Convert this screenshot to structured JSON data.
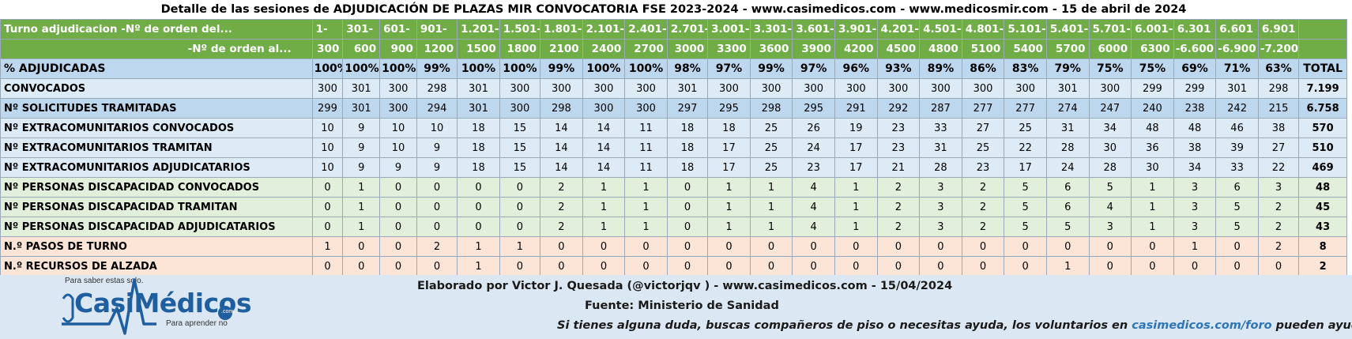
{
  "title": "Detalle de las sesiones de ADJUDICACIÓN DE PLAZAS MIR CONVOCATORIA FSE 2023-2024  - www.casimedicos.com - www.medicosmir.com - 15 de abril de 2024",
  "header": {
    "from_label": "Turno adjudicacion -Nº de orden del...",
    "to_label": "-Nº de orden al...",
    "total_label": "TOTAL",
    "from": [
      "1-",
      "301-",
      "601-",
      "901-",
      "1.201-",
      "1.501-",
      "1.801-",
      "2.101-",
      "2.401-",
      "2.701-",
      "3.001-",
      "3.301-",
      "3.601-",
      "3.901-",
      "4.201-",
      "4.501-",
      "4.801-",
      "5.101-",
      "5.401-",
      "5.701-",
      "6.001-",
      "6.301",
      "6.601",
      "6.901"
    ],
    "to": [
      "300",
      "600",
      "900",
      "1200",
      "1500",
      "1800",
      "2100",
      "2400",
      "2700",
      "3000",
      "3300",
      "3600",
      "3900",
      "4200",
      "4500",
      "4800",
      "5100",
      "5400",
      "5700",
      "6000",
      "6300",
      "-6.600",
      "-6.900",
      "-7.200"
    ]
  },
  "rows": [
    {
      "label": "% ADJUDICADAS",
      "style": "pct",
      "values": [
        "100%",
        "100%",
        "100%",
        "99%",
        "100%",
        "100%",
        "99%",
        "100%",
        "100%",
        "98%",
        "97%",
        "99%",
        "97%",
        "96%",
        "93%",
        "89%",
        "86%",
        "83%",
        "79%",
        "75%",
        "75%",
        "69%",
        "71%",
        "63%"
      ],
      "total": "TOTAL"
    },
    {
      "label": "CONVOCADOS",
      "style": "blue",
      "values": [
        "300",
        "301",
        "300",
        "298",
        "301",
        "300",
        "300",
        "300",
        "300",
        "301",
        "300",
        "300",
        "300",
        "300",
        "300",
        "300",
        "300",
        "300",
        "301",
        "300",
        "299",
        "299",
        "301",
        "298"
      ],
      "total": "7.199"
    },
    {
      "label": "Nº SOLICITUDES TRAMITADAS",
      "style": "blueb",
      "values": [
        "299",
        "301",
        "300",
        "294",
        "301",
        "300",
        "298",
        "300",
        "300",
        "297",
        "295",
        "298",
        "295",
        "291",
        "292",
        "287",
        "277",
        "277",
        "274",
        "247",
        "240",
        "238",
        "242",
        "215"
      ],
      "total": "6.758"
    },
    {
      "label": "Nº EXTRACOMUNITARIOS CONVOCADOS",
      "style": "blue",
      "values": [
        "10",
        "9",
        "10",
        "10",
        "18",
        "15",
        "14",
        "14",
        "11",
        "18",
        "18",
        "25",
        "26",
        "19",
        "23",
        "33",
        "27",
        "25",
        "31",
        "34",
        "48",
        "48",
        "46",
        "38"
      ],
      "total": "570"
    },
    {
      "label": "Nº EXTRACOMUNITARIOS TRAMITAN",
      "style": "blue",
      "values": [
        "10",
        "9",
        "10",
        "9",
        "18",
        "15",
        "14",
        "14",
        "11",
        "18",
        "17",
        "25",
        "24",
        "17",
        "23",
        "31",
        "25",
        "22",
        "28",
        "30",
        "36",
        "38",
        "39",
        "27"
      ],
      "total": "510"
    },
    {
      "label": "Nº EXTRACOMUNITARIOS ADJUDICATARIOS",
      "style": "blue",
      "values": [
        "10",
        "9",
        "9",
        "9",
        "18",
        "15",
        "14",
        "14",
        "11",
        "18",
        "17",
        "25",
        "23",
        "17",
        "21",
        "28",
        "23",
        "17",
        "24",
        "28",
        "30",
        "34",
        "33",
        "22"
      ],
      "total": "469"
    },
    {
      "label": "Nº PERSONAS DISCAPACIDAD CONVOCADOS",
      "style": "green",
      "values": [
        "0",
        "1",
        "0",
        "0",
        "0",
        "0",
        "2",
        "1",
        "1",
        "0",
        "1",
        "1",
        "4",
        "1",
        "2",
        "3",
        "2",
        "5",
        "6",
        "5",
        "1",
        "3",
        "6",
        "3"
      ],
      "total": "48"
    },
    {
      "label": "Nº PERSONAS DISCAPACIDAD TRAMITAN",
      "style": "green",
      "values": [
        "0",
        "1",
        "0",
        "0",
        "0",
        "0",
        "2",
        "1",
        "1",
        "0",
        "1",
        "1",
        "4",
        "1",
        "2",
        "3",
        "2",
        "5",
        "6",
        "4",
        "1",
        "3",
        "5",
        "2"
      ],
      "total": "45"
    },
    {
      "label": "Nº PERSONAS DISCAPACIDAD ADJUDICATARIOS",
      "style": "green",
      "values": [
        "0",
        "1",
        "0",
        "0",
        "0",
        "0",
        "2",
        "1",
        "1",
        "0",
        "1",
        "1",
        "4",
        "1",
        "2",
        "3",
        "2",
        "5",
        "5",
        "3",
        "1",
        "3",
        "5",
        "2"
      ],
      "total": "43"
    },
    {
      "label": "N.º PASOS DE TURNO",
      "style": "orange",
      "values": [
        "1",
        "0",
        "0",
        "2",
        "1",
        "1",
        "0",
        "0",
        "0",
        "0",
        "0",
        "0",
        "0",
        "0",
        "0",
        "0",
        "0",
        "0",
        "0",
        "0",
        "0",
        "1",
        "0",
        "2"
      ],
      "total": "8"
    },
    {
      "label": "N.º RECURSOS DE ALZADA",
      "style": "orange",
      "values": [
        "0",
        "0",
        "0",
        "0",
        "1",
        "0",
        "0",
        "0",
        "0",
        "0",
        "0",
        "0",
        "0",
        "0",
        "0",
        "0",
        "0",
        "0",
        "1",
        "0",
        "0",
        "0",
        "0",
        "0"
      ],
      "total": "2"
    }
  ],
  "footer": {
    "credit": "Elaborado por Victor J. Quesada (@victorjqv ) - www.casimedicos.com - 15/04/2024",
    "source": "Fuente: Ministerio de Sanidad",
    "help_before": "Si tienes alguna duda, buscas compañeros de piso o necesitas ayuda, los voluntarios en ",
    "help_link": "casimedicos.com/foro",
    "help_after": " pueden ayudarte"
  },
  "logo": {
    "tagline_top": "Para saber estas solo.",
    "name": "CasiMédicos",
    "domain": ".com",
    "tagline_bottom": "Para aprender no"
  },
  "colors": {
    "header_green": "#70ad47",
    "pct_blue": "#bdd7ee",
    "row_blue": "#ddebf7",
    "row_green": "#e2efda",
    "row_orange": "#fce4d6",
    "footer_bg": "#dbe7f2",
    "link_blue": "#2e75b6",
    "logo_blue": "#1f5fa0"
  }
}
